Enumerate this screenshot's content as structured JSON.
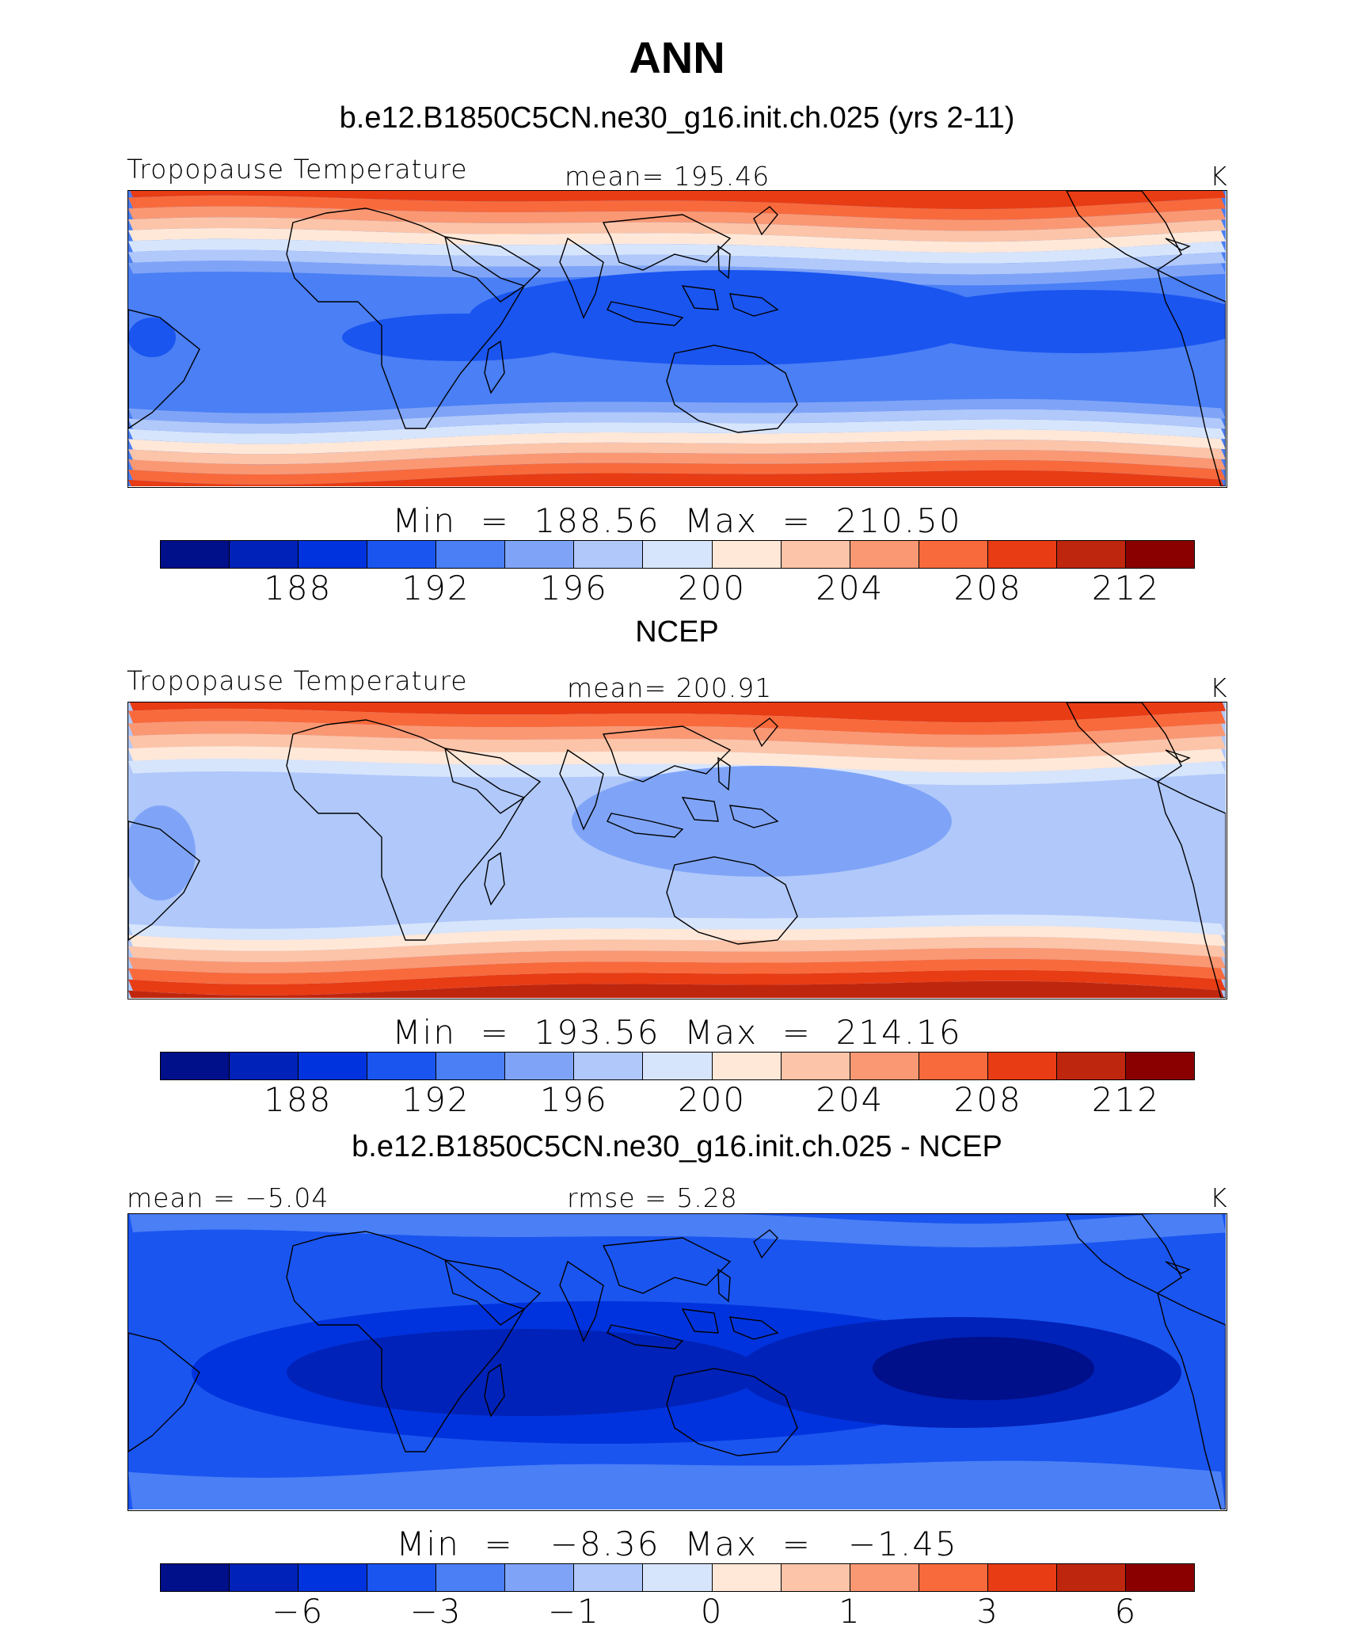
{
  "title": "ANN",
  "colors": [
    "#000f8a",
    "#0022b8",
    "#0033dd",
    "#1a55f0",
    "#4a7ff5",
    "#7fa4f7",
    "#b0c8fa",
    "#d7e5fc",
    "#ffe8d8",
    "#fcc4a8",
    "#fa9874",
    "#f86a3c",
    "#e83c14",
    "#bf260e",
    "#8a0000"
  ],
  "panels": [
    {
      "title": "b.e12.B1850C5CN.ne30_g16.init.ch.025 (yrs 2-11)",
      "left_label": "Tropopause Temperature",
      "center_label": "mean=  195.46",
      "right_label": "K",
      "min_max": "Min  =  188.56  Max  =  210.50",
      "ticks": [
        "188",
        "192",
        "196",
        "200",
        "204",
        "208",
        "212"
      ]
    },
    {
      "title": "NCEP",
      "left_label": "Tropopause Temperature",
      "center_label": "mean=  200.91",
      "right_label": "K",
      "min_max": "Min  =  193.56  Max  =  214.16",
      "ticks": [
        "188",
        "192",
        "196",
        "200",
        "204",
        "208",
        "212"
      ]
    },
    {
      "title": "b.e12.B1850C5CN.ne30_g16.init.ch.025 - NCEP",
      "left_label": "mean =   −5.04",
      "center_label": "rmse =     5.28",
      "right_label": "K",
      "min_max": "Min  =   −8.36  Max  =   −1.45",
      "ticks": [
        "−6",
        "−3",
        "−1",
        "0",
        "1",
        "3",
        "6"
      ]
    }
  ],
  "chart_data": [
    {
      "type": "heatmap",
      "title": "b.e12.B1850C5CN.ne30_g16.init.ch.025 (yrs 2-11)",
      "variable": "Tropopause Temperature",
      "units": "K",
      "mean": 195.46,
      "min": 188.56,
      "max": 210.5,
      "contour_levels": [
        186,
        188,
        190,
        192,
        194,
        196,
        198,
        200,
        202,
        204,
        206,
        208,
        210,
        212
      ],
      "latitude_profile_K": [
        [
          60,
          211
        ],
        [
          45,
          206
        ],
        [
          30,
          198
        ],
        [
          15,
          192
        ],
        [
          0,
          190
        ],
        [
          -15,
          191
        ],
        [
          -30,
          198
        ],
        [
          -45,
          206
        ],
        [
          -60,
          211
        ]
      ]
    },
    {
      "type": "heatmap",
      "title": "NCEP",
      "variable": "Tropopause Temperature",
      "units": "K",
      "mean": 200.91,
      "min": 193.56,
      "max": 214.16,
      "contour_levels": [
        186,
        188,
        190,
        192,
        194,
        196,
        198,
        200,
        202,
        204,
        206,
        208,
        210,
        212
      ],
      "latitude_profile_K": [
        [
          60,
          212
        ],
        [
          45,
          207
        ],
        [
          30,
          200
        ],
        [
          15,
          197
        ],
        [
          0,
          195
        ],
        [
          -15,
          196
        ],
        [
          -30,
          201
        ],
        [
          -45,
          208
        ],
        [
          -60,
          213
        ]
      ]
    },
    {
      "type": "heatmap",
      "title": "b.e12.B1850C5CN.ne30_g16.init.ch.025 - NCEP",
      "units": "K",
      "mean": -5.04,
      "rmse": 5.28,
      "min": -8.36,
      "max": -1.45,
      "contour_levels": [
        -7,
        -6,
        -5,
        -4,
        -3,
        -2,
        -1,
        -0.5,
        0,
        0.5,
        1,
        2,
        3,
        4,
        6
      ]
    }
  ]
}
